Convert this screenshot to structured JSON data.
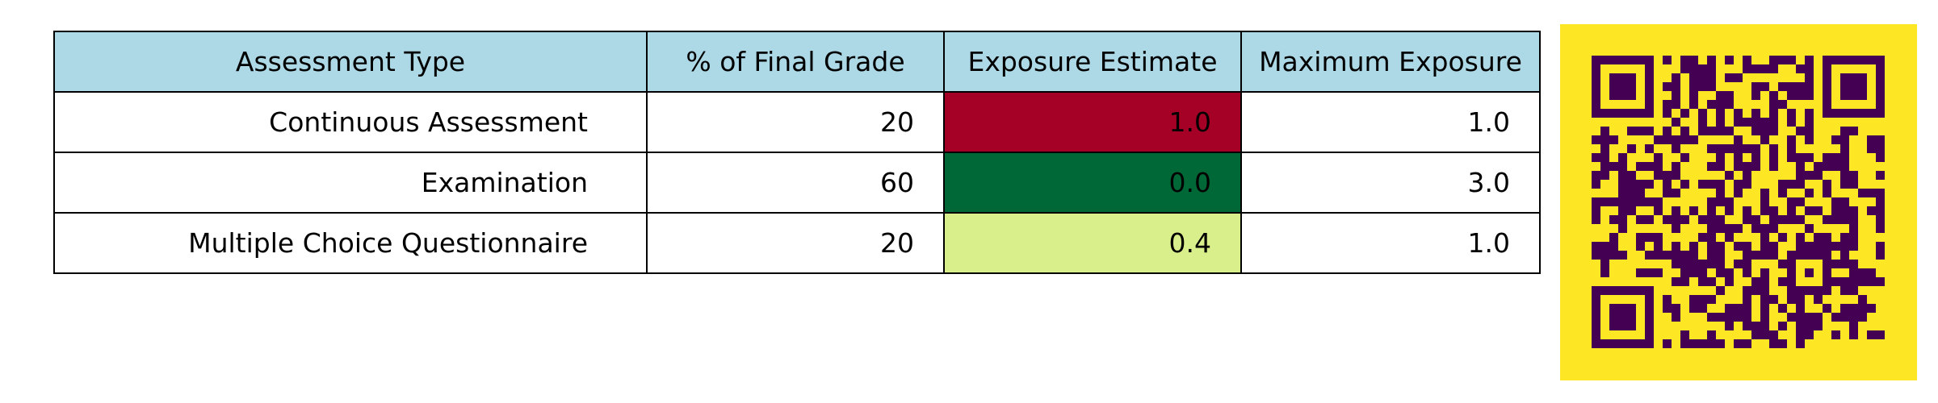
{
  "chart_data": {
    "type": "table",
    "columns": [
      "Assessment Type",
      "% of Final Grade",
      "Exposure Estimate",
      "Maximum Exposure"
    ],
    "rows": [
      [
        "Continuous Assessment",
        "20",
        "1.0",
        "1.0"
      ],
      [
        "Examination",
        "60",
        "0.0",
        "3.0"
      ],
      [
        "Multiple Choice Questionnaire",
        "20",
        "0.4",
        "1.0"
      ]
    ],
    "header_color": "#add8e6",
    "cell_colors": {
      "Exposure Estimate": [
        "#a50026",
        "#006837",
        "#d9ef8b"
      ]
    }
  },
  "qr": {
    "background_color": "#fde725",
    "module_color": "#440154"
  }
}
